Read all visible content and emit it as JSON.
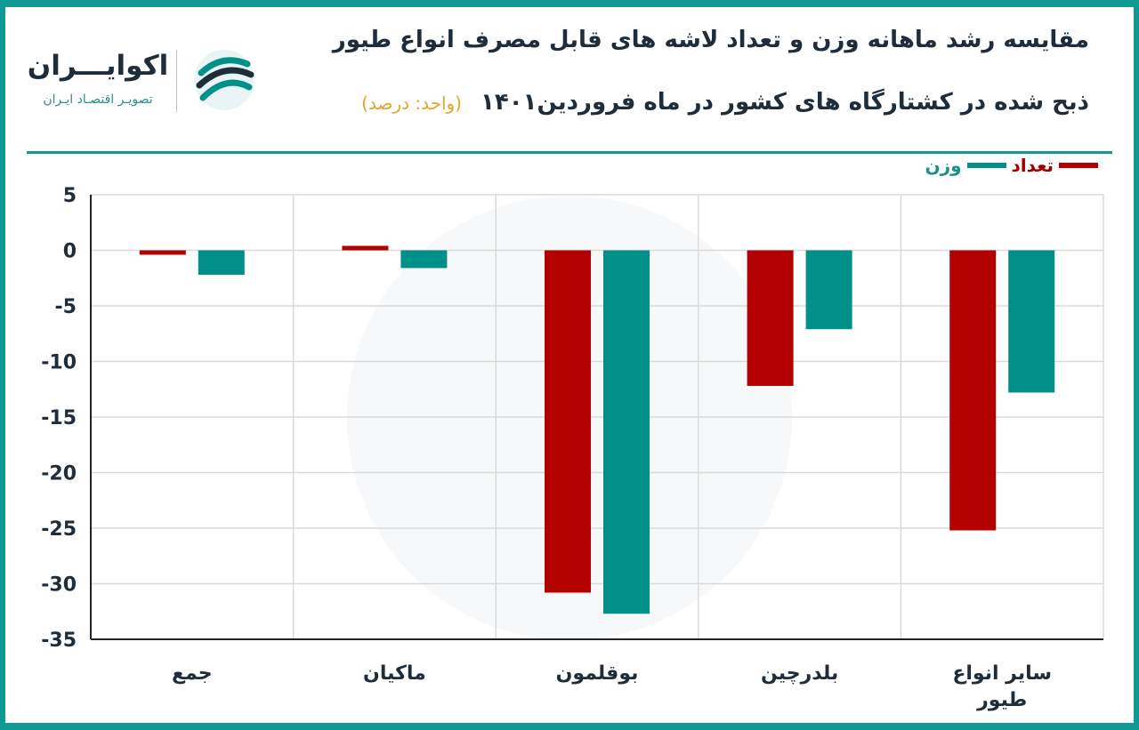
{
  "header": {
    "title_line1": "مقایسه رشد ماهانه وزن و تعداد لاشه های قابل مصرف انواع طیور",
    "title_line2": "ذبح شده در کشتارگاه های کشور در ماه فروردین۱۴۰۱",
    "unit": "(واحد: درصد)"
  },
  "logo": {
    "name": "اکوایـــران",
    "tagline": "تصویـر اقتصـاد ایـران"
  },
  "colors": {
    "count": "#b30000",
    "weight": "#008f89",
    "frame": "#0e9a92",
    "grid": "#dadada",
    "axis": "#222222"
  },
  "chart_data": {
    "type": "bar",
    "categories": [
      "جمع",
      "ماکیان",
      "بوقلمون",
      "بلدرچین",
      "سایر انواع طیور"
    ],
    "series": [
      {
        "name": "تعداد",
        "values": [
          -0.4,
          0.4,
          -30.8,
          -12.2,
          -25.2
        ]
      },
      {
        "name": "وزن",
        "values": [
          -2.2,
          -1.6,
          -32.7,
          -7.1,
          -12.8
        ]
      }
    ],
    "ylim": [
      -35,
      5
    ],
    "yticks": [
      5,
      0,
      -5,
      -10,
      -15,
      -20,
      -25,
      -30,
      -35
    ],
    "ytick_labels": [
      "5",
      "0",
      "-5",
      "-10",
      "-15",
      "-20",
      "-25",
      "-30",
      "-35"
    ],
    "grid": true,
    "legend_position": "top-right"
  }
}
